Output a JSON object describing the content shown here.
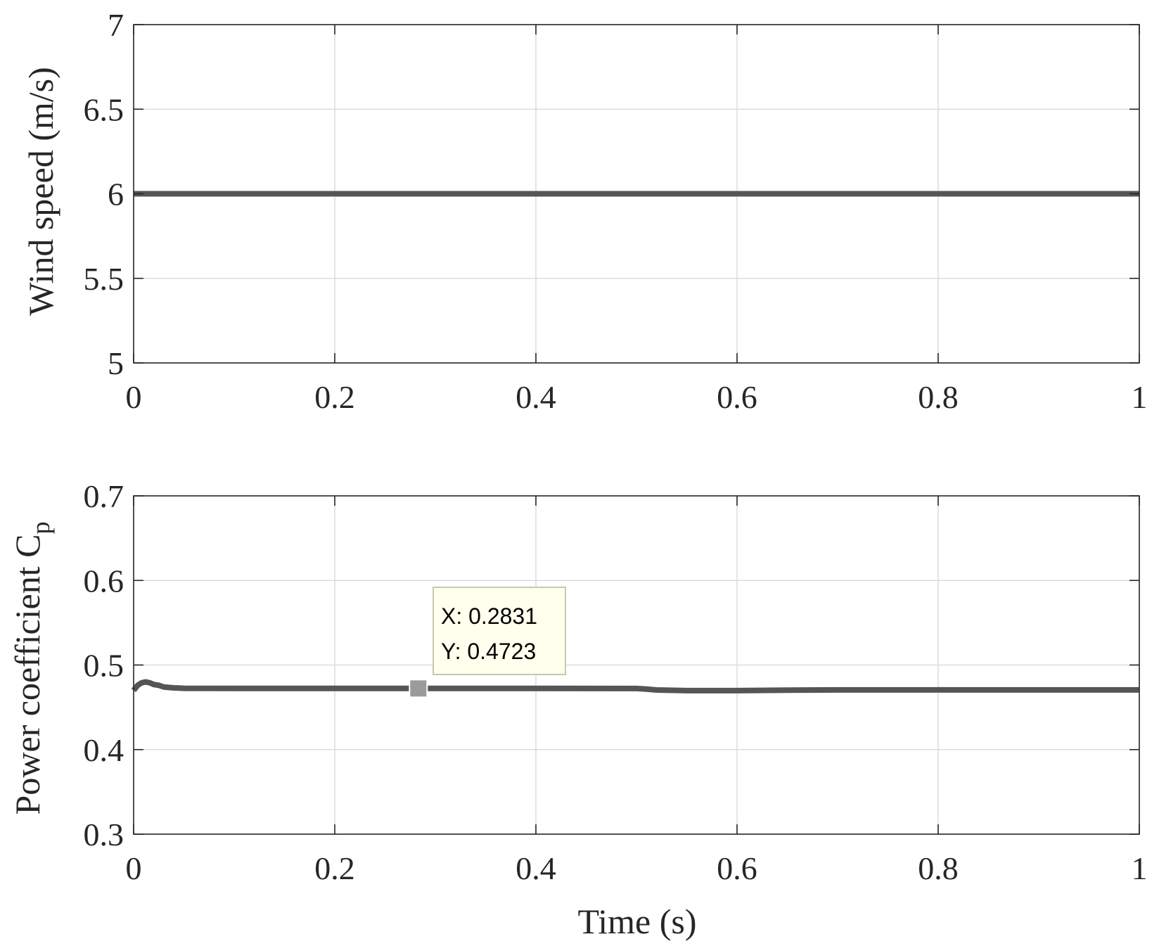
{
  "colors": {
    "line": "#555555",
    "grid": "#dcdcdc",
    "axis": "#262626",
    "datatip_bg": "#ffffee",
    "datatip_border": "#c8c8b0",
    "datatip_marker": "#9b9b9b"
  },
  "chart_data": [
    {
      "type": "line",
      "title": "",
      "xlabel": "",
      "ylabel": "Wind speed (m/s)",
      "xlim": [
        0,
        1
      ],
      "ylim": [
        5,
        7
      ],
      "grid": true,
      "x_ticks": [
        0,
        0.2,
        0.4,
        0.6,
        0.8,
        1
      ],
      "x_tick_labels": [
        "0",
        "0.2",
        "0.4",
        "0.6",
        "0.8",
        "1"
      ],
      "y_ticks": [
        5,
        5.5,
        6,
        6.5,
        7
      ],
      "y_tick_labels": [
        "5",
        "5.5",
        "6",
        "6.5",
        "7"
      ],
      "series": [
        {
          "x": [
            0,
            1
          ],
          "y": [
            6,
            6
          ]
        }
      ]
    },
    {
      "type": "line",
      "title": "",
      "xlabel": "Time (s)",
      "ylabel": "Power coefficient C",
      "ylabel_subscript": "p",
      "xlim": [
        0,
        1
      ],
      "ylim": [
        0.3,
        0.7
      ],
      "grid": true,
      "x_ticks": [
        0,
        0.2,
        0.4,
        0.6,
        0.8,
        1
      ],
      "x_tick_labels": [
        "0",
        "0.2",
        "0.4",
        "0.6",
        "0.8",
        "1"
      ],
      "y_ticks": [
        0.3,
        0.4,
        0.5,
        0.6,
        0.7
      ],
      "y_tick_labels": [
        "0.3",
        "0.4",
        "0.5",
        "0.6",
        "0.7"
      ],
      "series": [
        {
          "x": [
            0,
            0.004,
            0.008,
            0.012,
            0.016,
            0.02,
            0.025,
            0.03,
            0.04,
            0.05,
            0.1,
            0.2,
            0.2831,
            0.4,
            0.5,
            0.51,
            0.52,
            0.55,
            0.6,
            0.65,
            0.7,
            0.8,
            1
          ],
          "y": [
            0.47,
            0.476,
            0.479,
            0.48,
            0.479,
            0.477,
            0.476,
            0.474,
            0.473,
            0.4725,
            0.4723,
            0.4723,
            0.4723,
            0.4723,
            0.4722,
            0.4715,
            0.4705,
            0.4698,
            0.4698,
            0.4703,
            0.4706,
            0.4706,
            0.4706
          ]
        }
      ],
      "datatip": {
        "x": 0.2831,
        "y": 0.4723,
        "line1": "X: 0.2831",
        "line2": "Y: 0.4723"
      }
    }
  ]
}
